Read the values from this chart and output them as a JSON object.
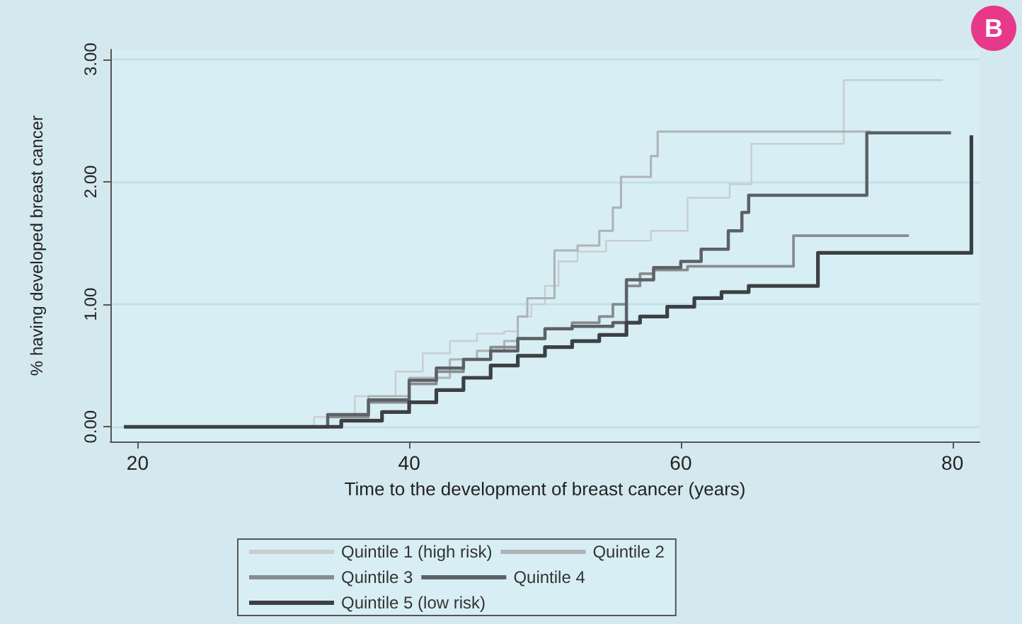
{
  "chart_data": {
    "type": "step",
    "xlabel": "Time to the development of breast cancer (years)",
    "ylabel": "% having developed breast cancer",
    "annotations": [
      "B"
    ],
    "xlim": [
      18,
      82
    ],
    "xticks": [
      20,
      40,
      60,
      80
    ],
    "ylim": [
      -0.12,
      3.08
    ],
    "yticks": [
      {
        "value": 0,
        "label": "0.00"
      },
      {
        "value": 1,
        "label": "1.00"
      },
      {
        "value": 2,
        "label": "2.00"
      },
      {
        "value": 3,
        "label": "3.00"
      }
    ],
    "grid": "y",
    "legend": "bottom",
    "marker": "none",
    "line_style": "solid",
    "series": [
      {
        "name": "Quintile 1 (high risk)",
        "color": "#c8cdd1",
        "x": [
          19,
          30,
          33,
          36,
          39,
          41,
          43,
          45,
          47,
          48,
          49,
          50,
          51,
          52.4,
          54.5,
          57.8,
          60.5,
          63.6,
          65.2,
          72,
          79.3
        ],
        "values": [
          0,
          0,
          0.08,
          0.25,
          0.45,
          0.6,
          0.7,
          0.76,
          0.78,
          0.9,
          1.0,
          1.15,
          1.35,
          1.43,
          1.52,
          1.6,
          1.87,
          1.98,
          2.31,
          2.83,
          2.83
        ]
      },
      {
        "name": "Quintile 2",
        "color": "#aeb3b7",
        "x": [
          19,
          30,
          34,
          37,
          40,
          43,
          45,
          47,
          48,
          48.7,
          50.7,
          52.4,
          54,
          55,
          55.6,
          57.8,
          58.3,
          74
        ],
        "values": [
          0,
          0,
          0.1,
          0.25,
          0.4,
          0.55,
          0.62,
          0.7,
          0.9,
          1.05,
          1.44,
          1.48,
          1.6,
          1.79,
          2.04,
          2.21,
          2.41,
          2.41
        ]
      },
      {
        "name": "Quintile 3",
        "color": "#878c90",
        "x": [
          19,
          31,
          34,
          37,
          40,
          42,
          44,
          46,
          48,
          50,
          52,
          54,
          55,
          56,
          57,
          58,
          60.5,
          68.3,
          76.8
        ],
        "values": [
          0,
          0,
          0.08,
          0.2,
          0.35,
          0.45,
          0.55,
          0.65,
          0.72,
          0.8,
          0.85,
          0.9,
          1.0,
          1.15,
          1.25,
          1.28,
          1.31,
          1.56,
          1.56
        ]
      },
      {
        "name": "Quintile 4",
        "color": "#5c6165",
        "x": [
          19,
          31,
          34,
          37,
          40,
          42,
          44,
          46,
          48,
          50,
          52,
          55,
          56,
          58,
          60,
          61.5,
          63.5,
          64.5,
          65,
          73.7,
          79.9
        ],
        "values": [
          0,
          0,
          0.1,
          0.22,
          0.38,
          0.48,
          0.55,
          0.62,
          0.72,
          0.8,
          0.82,
          0.85,
          1.2,
          1.3,
          1.35,
          1.45,
          1.6,
          1.75,
          1.89,
          2.4,
          2.4
        ]
      },
      {
        "name": "Quintile 5 (low risk)",
        "color": "#3c4044",
        "x": [
          19,
          32,
          35,
          38,
          40,
          42,
          44,
          46,
          48,
          50,
          52,
          54,
          56,
          57,
          59,
          61,
          63,
          65,
          70.1,
          81.4
        ],
        "values": [
          0,
          0,
          0.05,
          0.12,
          0.2,
          0.3,
          0.4,
          0.5,
          0.58,
          0.65,
          0.7,
          0.75,
          0.85,
          0.9,
          0.98,
          1.05,
          1.1,
          1.15,
          1.42,
          2.38
        ]
      }
    ]
  }
}
